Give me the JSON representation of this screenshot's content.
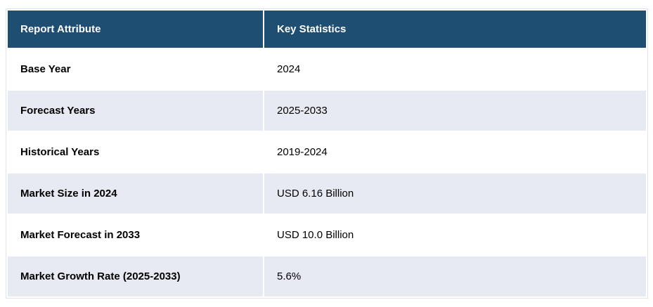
{
  "chart_data": {
    "type": "table",
    "columns": [
      "Report Attribute",
      "Key Statistics"
    ],
    "rows": [
      [
        "Base Year",
        "2024"
      ],
      [
        "Forecast Years",
        "2025-2033"
      ],
      [
        "Historical Years",
        "2019-2024"
      ],
      [
        "Market Size in 2024",
        "USD 6.16 Billion"
      ],
      [
        "Market Forecast in 2033",
        "USD 10.0 Billion"
      ],
      [
        "Market Growth Rate (2025-2033)",
        "5.6%"
      ]
    ]
  },
  "colors": {
    "header_bg": "#1F4E73",
    "header_text": "#FFFFFF",
    "row_odd_bg": "#FFFFFF",
    "row_even_bg": "#E7E9F3",
    "body_text": "#000000",
    "table_border": "#E2E2EA"
  }
}
